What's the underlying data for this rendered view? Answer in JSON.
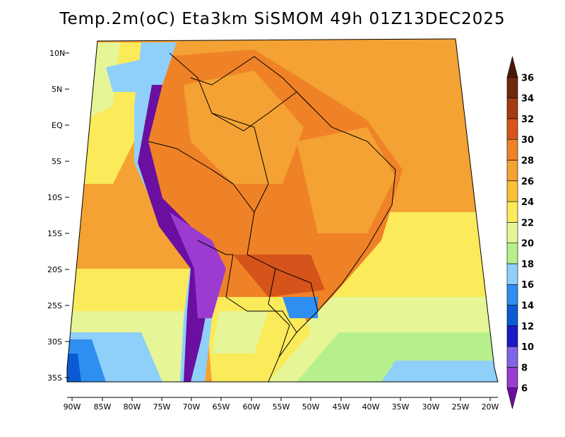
{
  "title": "Temp.2m(oC) Eta3km SiSMOM 49h 01Z13DEC2025",
  "map": {
    "lat_labels": [
      "10N",
      "5N",
      "EQ",
      "5S",
      "10S",
      "15S",
      "20S",
      "25S",
      "30S",
      "35S"
    ],
    "lon_labels": [
      "90W",
      "85W",
      "80W",
      "75W",
      "70W",
      "65W",
      "60W",
      "55W",
      "50W",
      "45W",
      "40W",
      "35W",
      "30W",
      "25W",
      "20W"
    ]
  },
  "colorbar": {
    "levels": [
      "6",
      "8",
      "10",
      "12",
      "14",
      "16",
      "18",
      "20",
      "22",
      "24",
      "26",
      "28",
      "30",
      "32",
      "34",
      "36"
    ],
    "colors": [
      "#6a0fa0",
      "#9b3bcf",
      "#8066e6",
      "#1a1ac8",
      "#0a5ad2",
      "#2f8ff0",
      "#8fd0fa",
      "#b6f08c",
      "#e6f596",
      "#fbea5a",
      "#f9c03a",
      "#f4a233",
      "#ef8227",
      "#d5541b",
      "#a63a12",
      "#6f2a0c",
      "#4a1a06"
    ]
  }
}
